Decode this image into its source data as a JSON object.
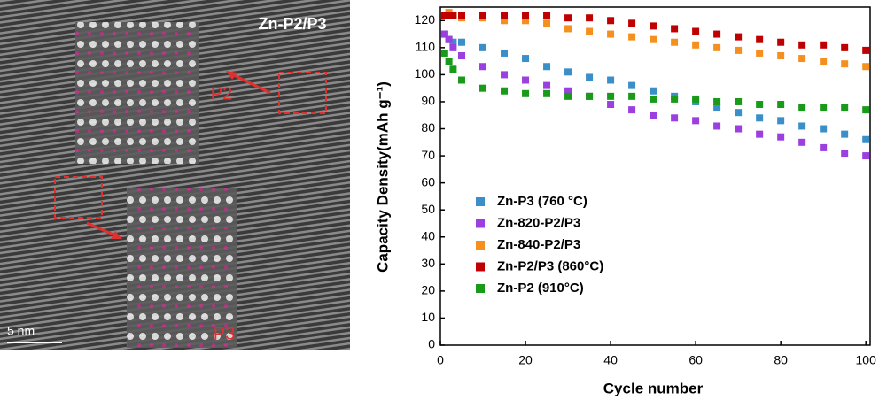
{
  "image_panel": {
    "title": "Zn-P2/P3",
    "label_p2": "P2",
    "label_p3": "P3",
    "scale_bar": "5 nm"
  },
  "chart_data": {
    "type": "scatter",
    "x_label": "Cycle number",
    "y_label": "Capacity Density(mAh g⁻¹)",
    "xlim": [
      0,
      101
    ],
    "ylim": [
      0,
      125
    ],
    "xticks": [
      0,
      20,
      40,
      60,
      80,
      100
    ],
    "yticks": [
      0,
      10,
      20,
      30,
      40,
      50,
      60,
      70,
      80,
      90,
      100,
      110,
      120
    ],
    "x": [
      1,
      2,
      3,
      5,
      10,
      15,
      20,
      25,
      30,
      35,
      40,
      45,
      50,
      55,
      60,
      65,
      70,
      75,
      80,
      85,
      90,
      95,
      100
    ],
    "legend": "lower left",
    "series": [
      {
        "name": "Zn-P3 (760 °C)",
        "color": "#3a8fc8",
        "values": [
          115,
          113,
          112,
          112,
          110,
          108,
          106,
          103,
          101,
          99,
          98,
          96,
          94,
          92,
          90,
          88,
          86,
          84,
          83,
          81,
          80,
          78,
          76
        ]
      },
      {
        "name": "Zn-820-P2/P3",
        "color": "#9b3fe0",
        "values": [
          115,
          113,
          110,
          107,
          103,
          100,
          98,
          96,
          94,
          92,
          89,
          87,
          85,
          84,
          83,
          81,
          80,
          78,
          77,
          75,
          73,
          71,
          70
        ]
      },
      {
        "name": "Zn-840-P2/P3",
        "color": "#f5901e",
        "values": [
          122,
          123,
          122,
          121,
          121,
          120,
          120,
          119,
          117,
          116,
          115,
          114,
          113,
          112,
          111,
          110,
          109,
          108,
          107,
          106,
          105,
          104,
          103
        ]
      },
      {
        "name": "Zn-P2/P3 (860°C)",
        "color": "#c00000",
        "values": [
          122,
          122,
          122,
          122,
          122,
          122,
          122,
          122,
          121,
          121,
          120,
          119,
          118,
          117,
          116,
          115,
          114,
          113,
          112,
          111,
          111,
          110,
          109
        ]
      },
      {
        "name": "Zn-P2 (910°C)",
        "color": "#1a9a1a",
        "values": [
          108,
          105,
          102,
          98,
          95,
          94,
          93,
          93,
          92,
          92,
          92,
          92,
          91,
          91,
          91,
          90,
          90,
          89,
          89,
          88,
          88,
          88,
          87
        ]
      }
    ]
  }
}
